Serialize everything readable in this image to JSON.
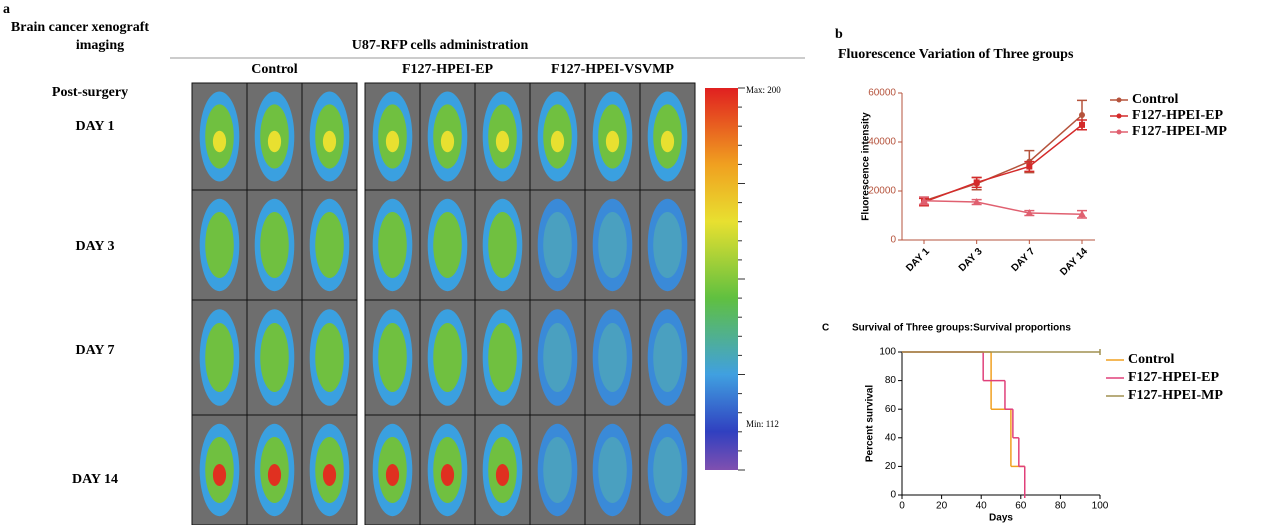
{
  "panel_a": {
    "label": "a",
    "title_lines": [
      "Brain cancer xenograft",
      "imaging"
    ],
    "header": "U87-RFP cells administration",
    "groups": [
      "Control",
      "F127-HPEI-EP",
      "F127-HPEI-VSVMP"
    ],
    "row_header": "Post-surgery",
    "rows": [
      "DAY 1",
      "DAY 3",
      "DAY 7",
      "DAY 14"
    ],
    "colorbar": {
      "max_label": "Max: 200",
      "min_label": "Min: 112"
    }
  },
  "chart_data": [
    {
      "type": "line",
      "panel_label": "b",
      "title": "Fluorescence Variation of Three groups",
      "y_label": "Fluorescence intensity",
      "categories": [
        "DAY 1",
        "DAY 3",
        "DAY 7",
        "DAY 14"
      ],
      "ylim": [
        0,
        60000
      ],
      "yticks": [
        0,
        20000,
        40000,
        60000
      ],
      "series": [
        {
          "name": "Control",
          "color": "#b5533c",
          "marker": "circle",
          "values": [
            16000,
            23000,
            32000,
            51000
          ],
          "errors": [
            1500,
            2500,
            4500,
            6000
          ]
        },
        {
          "name": "F127-HPEI-EP",
          "color": "#d42a2a",
          "marker": "square",
          "values": [
            15500,
            23500,
            30000,
            47000
          ],
          "errors": [
            1500,
            2000,
            2000,
            2000
          ]
        },
        {
          "name": "F127-HPEI-MP",
          "color": "#e06070",
          "marker": "triangle",
          "values": [
            16000,
            15500,
            11000,
            10500
          ],
          "errors": [
            1500,
            1000,
            1000,
            1500
          ]
        }
      ]
    },
    {
      "type": "step",
      "panel_label": "C",
      "title": "Survival of Three groups:Survival proportions",
      "x_label": "Days",
      "y_label": "Percent survival",
      "xlim": [
        0,
        100
      ],
      "xticks": [
        0,
        20,
        40,
        60,
        80,
        100
      ],
      "ylim": [
        0,
        100
      ],
      "yticks": [
        0,
        20,
        40,
        60,
        80,
        100
      ],
      "series": [
        {
          "name": "Control",
          "color": "#f0a020",
          "x": [
            0,
            45,
            55,
            62
          ],
          "values": [
            100,
            60,
            20,
            0
          ]
        },
        {
          "name": "F127-HPEI-EP",
          "color": "#e0407a",
          "x": [
            0,
            41,
            52,
            56,
            59,
            62
          ],
          "values": [
            100,
            80,
            60,
            40,
            20,
            0
          ]
        },
        {
          "name": "F127-HPEI-MP",
          "color": "#a09050",
          "x": [
            0,
            100
          ],
          "values": [
            100,
            100
          ]
        }
      ]
    }
  ]
}
